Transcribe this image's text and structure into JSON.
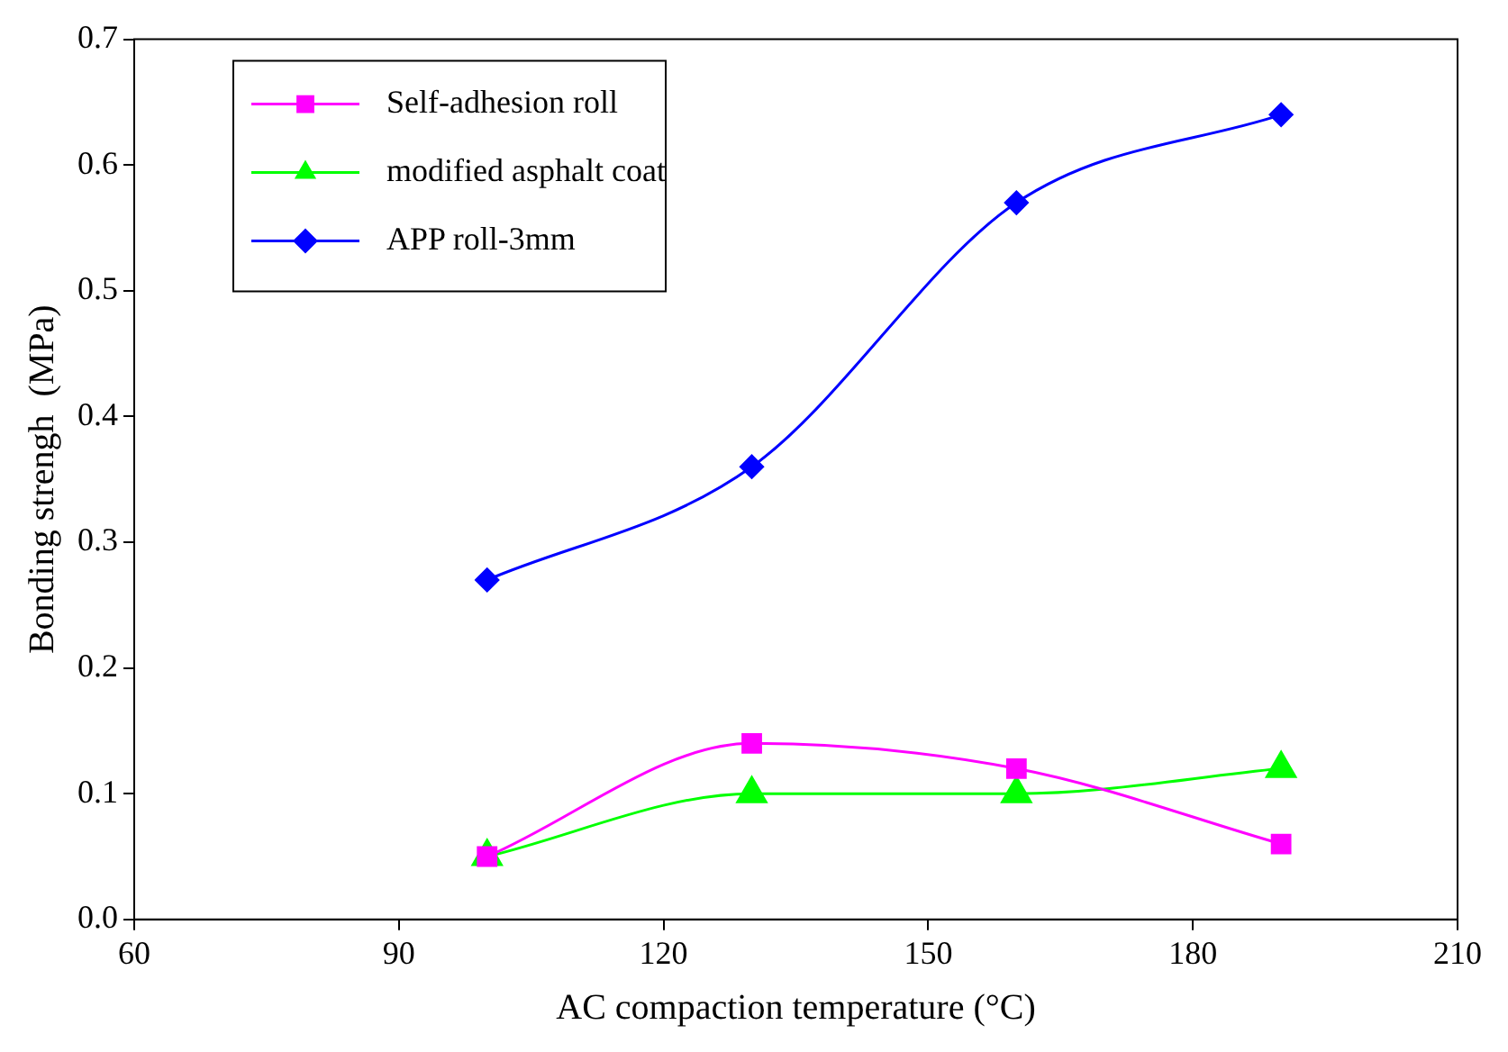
{
  "chart_data": {
    "type": "line",
    "xlabel": "AC compaction temperature (°C)",
    "ylabel": "Bonding strengh  (MPa)",
    "x": [
      100,
      130,
      160,
      190
    ],
    "series": [
      {
        "name": "Self-adhesion roll",
        "color": "#ff00ff",
        "marker": "square",
        "values": [
          0.05,
          0.14,
          0.12,
          0.06
        ]
      },
      {
        "name": "modified asphalt coat",
        "color": "#00ff00",
        "marker": "triangle",
        "values": [
          0.05,
          0.1,
          0.1,
          0.12
        ]
      },
      {
        "name": "APP roll-3mm",
        "color": "#0000ff",
        "marker": "diamond",
        "values": [
          0.27,
          0.36,
          0.57,
          0.64
        ]
      }
    ],
    "xlim": [
      60,
      210
    ],
    "xticks": [
      60,
      90,
      120,
      150,
      180,
      210
    ],
    "ylim": [
      0,
      0.7
    ],
    "yticks": [
      {
        "value": 0,
        "label": "0.0"
      },
      0.1,
      0.2,
      0.3,
      0.4,
      0.5,
      0.6,
      0.7
    ],
    "grid": false,
    "legend": "top left",
    "line_style": "solid"
  }
}
